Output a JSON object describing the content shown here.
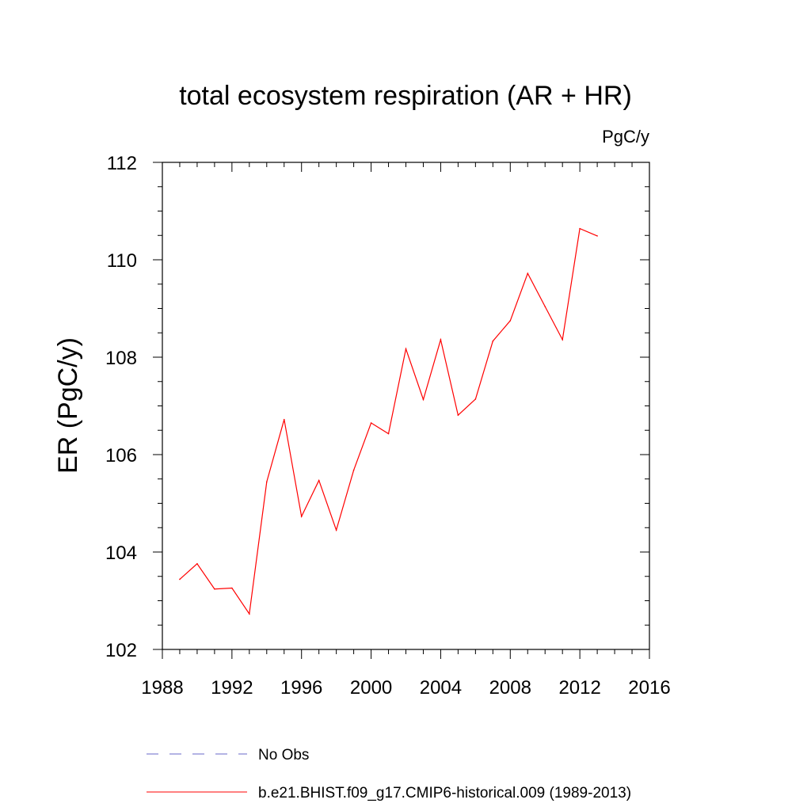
{
  "chart_data": {
    "type": "line",
    "title": "total ecosystem respiration (AR + HR)",
    "units_label": "PgC/y",
    "xlabel": "",
    "ylabel": "ER  (PgC/y)",
    "xlim": [
      1988,
      2016
    ],
    "ylim": [
      102,
      112
    ],
    "xticks": [
      1988,
      1992,
      1996,
      2000,
      2004,
      2008,
      2012,
      2016
    ],
    "yticks": [
      102,
      104,
      106,
      108,
      110,
      112
    ],
    "grid": false,
    "series": [
      {
        "name": "b.e21.BHIST.f09_g17.CMIP6-historical.009 (1989-2013)",
        "color": "#ff0000",
        "style": "solid",
        "x": [
          1989,
          1990,
          1991,
          1992,
          1993,
          1994,
          1995,
          1996,
          1997,
          1998,
          1999,
          2000,
          2001,
          2002,
          2003,
          2004,
          2005,
          2006,
          2007,
          2008,
          2009,
          2010,
          2011,
          2012,
          2013
        ],
        "y": [
          103.44,
          103.76,
          103.24,
          103.26,
          102.73,
          105.44,
          106.72,
          104.73,
          105.47,
          104.45,
          105.68,
          106.65,
          106.43,
          108.17,
          107.13,
          108.36,
          106.81,
          107.14,
          108.33,
          108.75,
          109.72,
          109.04,
          108.36,
          110.64,
          110.49
        ]
      }
    ],
    "legend": [
      {
        "label": "No Obs",
        "color": "#6a6aca",
        "style": "dashed"
      },
      {
        "label": "b.e21.BHIST.f09_g17.CMIP6-historical.009 (1989-2013)",
        "color": "#ff0000",
        "style": "solid"
      }
    ]
  }
}
